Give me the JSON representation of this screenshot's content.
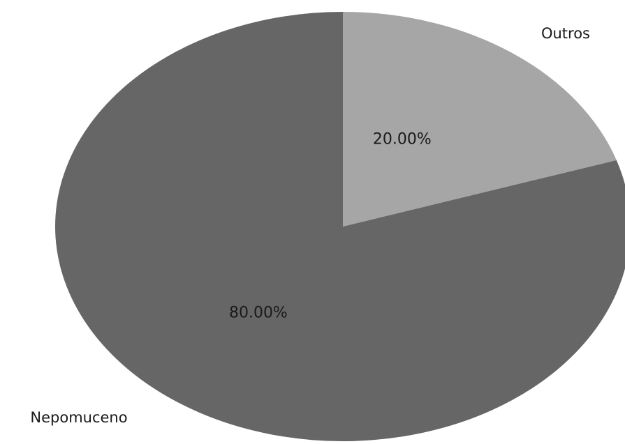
{
  "chart_data": {
    "type": "pie",
    "title": "",
    "start_angle": "top, clockwise",
    "slices": [
      {
        "label": "Outros",
        "value": 20.0,
        "percent_label": "20.00%",
        "color": "#a6a6a6"
      },
      {
        "label": "Nepomuceno",
        "value": 80.0,
        "percent_label": "80.00%",
        "color": "#666666"
      }
    ],
    "legend": "none"
  }
}
